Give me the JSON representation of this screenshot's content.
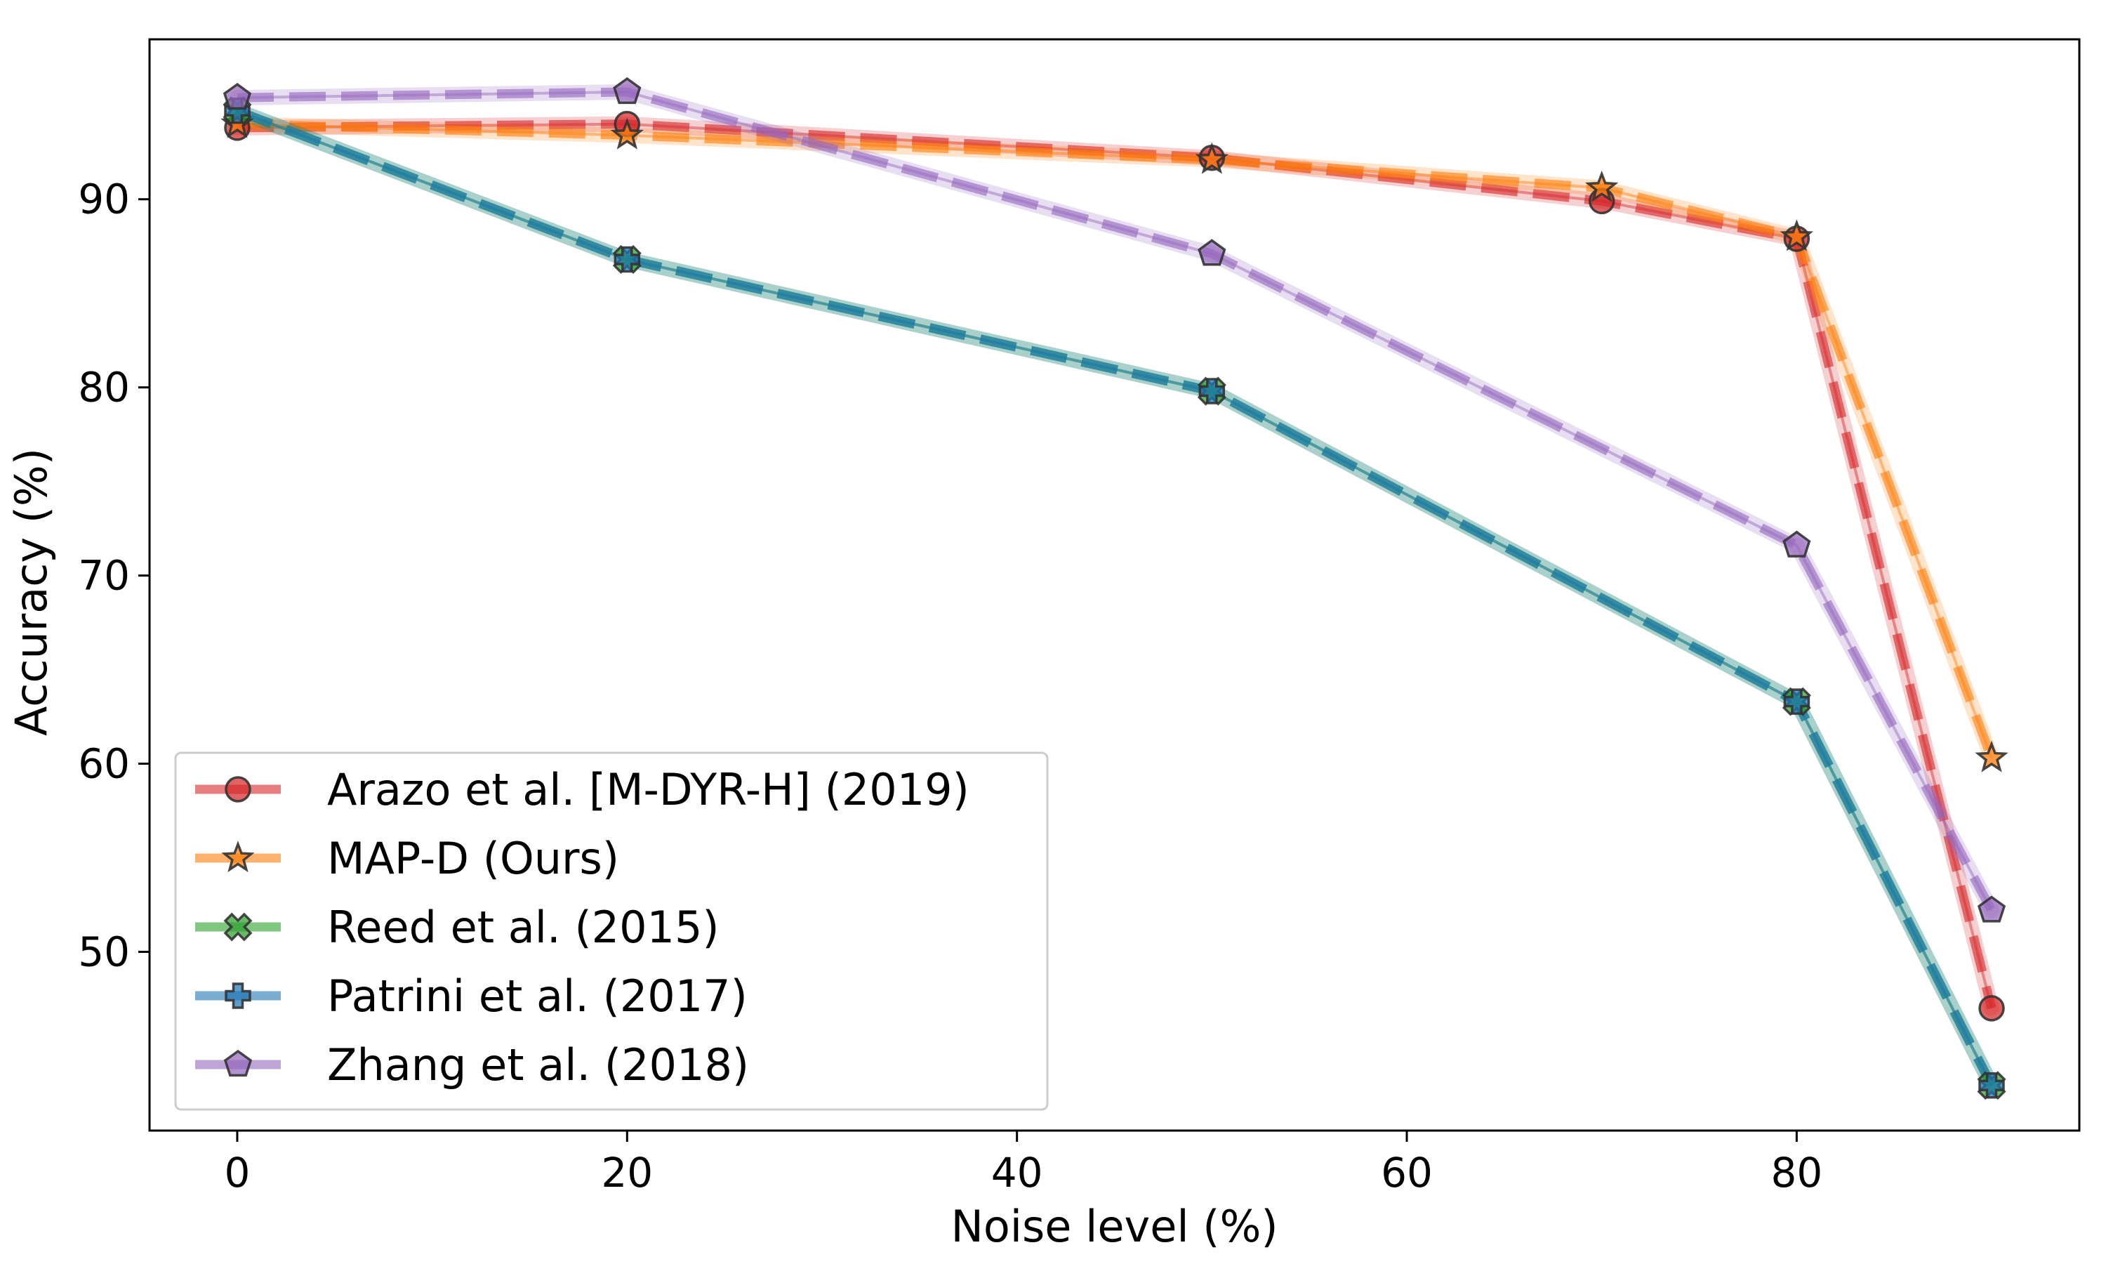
{
  "chart_data": {
    "type": "line",
    "title": "",
    "xlabel": "Noise level (%)",
    "ylabel": "Accuracy (%)",
    "xlim": [
      -4.5,
      94.5
    ],
    "ylim": [
      40.5,
      98.5
    ],
    "xticks": [
      0,
      20,
      40,
      60,
      80
    ],
    "yticks": [
      50,
      60,
      70,
      80,
      90
    ],
    "grid": false,
    "legend_position": "lower-left",
    "series": [
      {
        "name": "Arazo et al. [M-DYR-H] (2019)",
        "color": "#d62728",
        "marker": "circle",
        "x": [
          0,
          20,
          50,
          70,
          80,
          90
        ],
        "y": [
          93.8,
          94.0,
          92.2,
          89.9,
          87.9,
          47.0
        ]
      },
      {
        "name": "MAP-D (Ours)",
        "color": "#ff7f0e",
        "marker": "star",
        "x": [
          0,
          20,
          50,
          70,
          80,
          90
        ],
        "y": [
          94.0,
          93.4,
          92.1,
          90.6,
          88.0,
          60.3
        ]
      },
      {
        "name": "Reed et al. (2015)",
        "color": "#2ca02c",
        "marker": "x-filled",
        "x": [
          0,
          20,
          50,
          80,
          90
        ],
        "y": [
          94.7,
          86.8,
          79.8,
          63.3,
          42.9
        ]
      },
      {
        "name": "Patrini et al. (2017)",
        "color": "#1f77b4",
        "marker": "plus-filled",
        "x": [
          0,
          20,
          50,
          80,
          90
        ],
        "y": [
          94.7,
          86.8,
          79.8,
          63.3,
          42.9
        ]
      },
      {
        "name": "Zhang et al. (2018)",
        "color": "#9467bd",
        "marker": "pentagon",
        "x": [
          0,
          20,
          50,
          80,
          90
        ],
        "y": [
          95.4,
          95.7,
          87.1,
          71.6,
          52.2
        ]
      }
    ]
  }
}
